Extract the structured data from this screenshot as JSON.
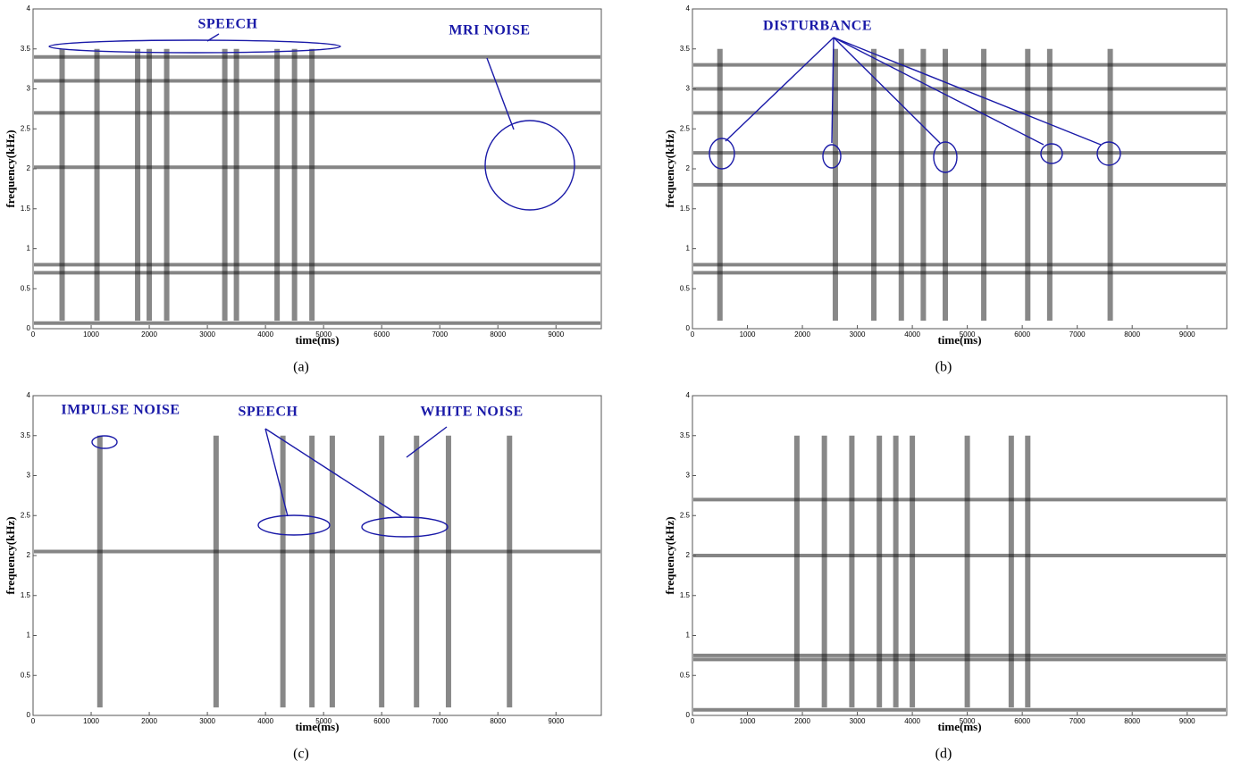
{
  "chart_data": [
    {
      "type": "spectrogram",
      "caption": "(a)",
      "xlabel": "time(ms)",
      "ylabel": "frequency(kHz)",
      "xlim": [
        0,
        9780
      ],
      "ylim": [
        0,
        4
      ],
      "xticks": [
        0,
        1000,
        2000,
        3000,
        4000,
        5000,
        6000,
        7000,
        8000,
        9000
      ],
      "yticks": [
        0,
        0.5,
        1,
        1.5,
        2,
        2.5,
        3,
        3.5,
        4
      ],
      "annotations": [
        "SPEECH",
        "MRI NOISE"
      ],
      "bands": [
        0.07,
        0.7,
        0.8,
        2.02,
        2.7,
        3.1,
        3.4
      ],
      "bursts": [
        500,
        1100,
        1800,
        2000,
        2300,
        3300,
        3500,
        4200,
        4500,
        4800
      ]
    },
    {
      "type": "spectrogram",
      "caption": "(b)",
      "xlabel": "time(ms)",
      "ylabel": "frequency(kHz)",
      "xlim": [
        0,
        9720
      ],
      "ylim": [
        0,
        4
      ],
      "xticks": [
        0,
        1000,
        2000,
        3000,
        4000,
        5000,
        6000,
        7000,
        8000,
        9000
      ],
      "yticks": [
        0,
        0.5,
        1,
        1.5,
        2,
        2.5,
        3,
        3.5,
        4
      ],
      "annotations": [
        "DISTURBANCE"
      ],
      "bands": [
        0.7,
        0.8,
        1.8,
        2.2,
        2.7,
        3.0,
        3.3
      ],
      "bursts": [
        500,
        2600,
        3300,
        3800,
        4200,
        4600,
        5300,
        6100,
        6500,
        7600
      ]
    },
    {
      "type": "spectrogram",
      "caption": "(c)",
      "xlabel": "time(ms)",
      "ylabel": "frequency(kHz)",
      "xlim": [
        0,
        9780
      ],
      "ylim": [
        0,
        4
      ],
      "xticks": [
        0,
        1000,
        2000,
        3000,
        4000,
        5000,
        6000,
        7000,
        8000,
        9000
      ],
      "yticks": [
        0,
        0.5,
        1,
        1.5,
        2,
        2.5,
        3,
        3.5,
        4
      ],
      "annotations": [
        "IMPULSE NOISE",
        "SPEECH",
        "WHITE NOISE"
      ],
      "bands": [
        2.05
      ],
      "bursts": [
        1150,
        3150,
        4300,
        4800,
        5150,
        6000,
        6600,
        7150,
        8200
      ]
    },
    {
      "type": "spectrogram",
      "caption": "(d)",
      "xlabel": "time(ms)",
      "ylabel": "frequency(kHz)",
      "xlim": [
        0,
        9720
      ],
      "ylim": [
        0,
        4
      ],
      "xticks": [
        0,
        1000,
        2000,
        3000,
        4000,
        5000,
        6000,
        7000,
        8000,
        9000
      ],
      "yticks": [
        0,
        0.5,
        1,
        1.5,
        2,
        2.5,
        3,
        3.5,
        4
      ],
      "annotations": [],
      "bands": [
        0.07,
        0.7,
        0.75,
        2.0,
        2.7
      ],
      "bursts": [
        1900,
        2400,
        2900,
        3400,
        3700,
        4000,
        5000,
        5800,
        6100
      ]
    }
  ]
}
